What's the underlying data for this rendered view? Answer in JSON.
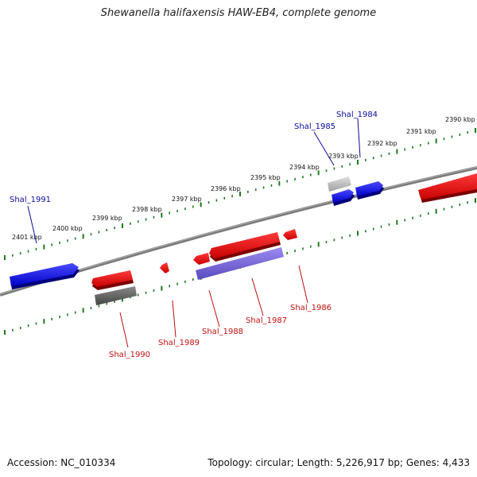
{
  "title": "Shewanella halifaxensis HAW-EB4, complete genome",
  "footer": {
    "accession": "Accession: NC_010334",
    "summary": "Topology: circular; Length: 5,226,917 bp; Genes: 4,433"
  },
  "colors": {
    "forward_gene": "#1010e0",
    "reverse_gene": "#e01010",
    "pseudo_gene": "#606060",
    "light_gene": "#b8b8b8",
    "rna_feature": "#6a5acd",
    "tick": "#1f7a1f",
    "backbone": "#808080",
    "forward_label": "#0a0aa0",
    "reverse_label": "#c01010"
  },
  "ruler": {
    "unit": "kbp",
    "labels": [
      {
        "kbp": 2401,
        "text": "2401 kbp"
      },
      {
        "kbp": 2400,
        "text": "2400 kbp"
      },
      {
        "kbp": 2399,
        "text": "2399 kbp"
      },
      {
        "kbp": 2398,
        "text": "2398 kbp"
      },
      {
        "kbp": 2397,
        "text": "2397 kbp"
      },
      {
        "kbp": 2396,
        "text": "2396 kbp"
      },
      {
        "kbp": 2395,
        "text": "2395 kbp"
      },
      {
        "kbp": 2394,
        "text": "2394 kbp"
      },
      {
        "kbp": 2393,
        "text": "2393 kbp"
      },
      {
        "kbp": 2392,
        "text": "2392 kbp"
      },
      {
        "kbp": 2391,
        "text": "2391 kbp"
      },
      {
        "kbp": 2390,
        "text": "2390 kbp"
      }
    ]
  },
  "genes": [
    {
      "name": "Shal_1991",
      "strand": "forward",
      "color": "forward_gene",
      "labeled": true
    },
    {
      "name": "Shal_1990",
      "strand": "reverse",
      "color": "reverse_gene",
      "labeled": true
    },
    {
      "name": "Shal_1989",
      "strand": "reverse",
      "color": "reverse_gene",
      "labeled": true
    },
    {
      "name": "Shal_1988",
      "strand": "reverse",
      "color": "reverse_gene",
      "labeled": true
    },
    {
      "name": "Shal_1987",
      "strand": "reverse",
      "color": "reverse_gene",
      "labeled": true
    },
    {
      "name": "Shal_1986",
      "strand": "reverse",
      "color": "reverse_gene",
      "labeled": true
    },
    {
      "name": "Shal_1985",
      "strand": "forward",
      "color": "forward_gene",
      "labeled": true
    },
    {
      "name": "Shal_1984",
      "strand": "forward",
      "color": "forward_gene",
      "labeled": true
    }
  ]
}
